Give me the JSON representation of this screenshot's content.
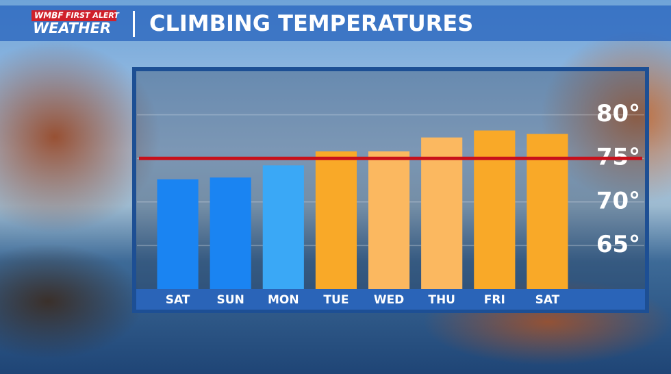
{
  "logo": {
    "station": "WMBF",
    "tag": "FIRST ALERT",
    "name": "WEATHER"
  },
  "chart_data": {
    "type": "bar",
    "title": "CLIMBING TEMPERATURES",
    "categories": [
      "SAT",
      "SUN",
      "MON",
      "TUE",
      "WED",
      "THU",
      "FRI",
      "SAT"
    ],
    "values": [
      72.6,
      72.8,
      74.2,
      75.8,
      75.8,
      77.4,
      78.2,
      77.8
    ],
    "colors": [
      "#1a84f2",
      "#1a84f2",
      "#3aa8f6",
      "#f9a928",
      "#fbb860",
      "#fbb860",
      "#f9a928",
      "#f9a928"
    ],
    "ylim": [
      60,
      85
    ],
    "yticks": [
      {
        "value": 65,
        "label": "65°"
      },
      {
        "value": 70,
        "label": "70°"
      },
      {
        "value": 75,
        "label": "75°"
      },
      {
        "value": 80,
        "label": "80°"
      }
    ],
    "grid": true,
    "reference_line": 75,
    "reference_color": "#c8101a"
  }
}
